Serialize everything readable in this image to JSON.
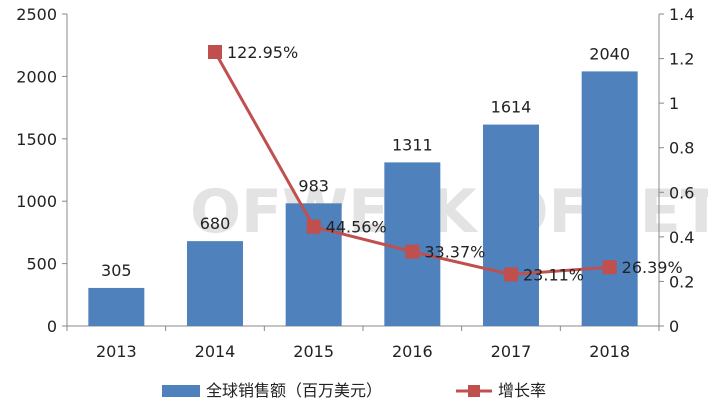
{
  "chart_data": {
    "type": "bar+line",
    "categories": [
      "2013",
      "2014",
      "2015",
      "2016",
      "2017",
      "2018"
    ],
    "left_axis": {
      "min": 0,
      "max": 2500,
      "ticks": [
        "0",
        "500",
        "1000",
        "1500",
        "2000",
        "2500"
      ]
    },
    "right_axis": {
      "min": 0,
      "max": 1.4,
      "ticks": [
        "0",
        "0.2",
        "0.4",
        "0.6",
        "0.8",
        "1",
        "1.2",
        "1.4"
      ]
    },
    "bar_series": {
      "name": "全球销售额（百万美元）",
      "color": "#4f81bd",
      "values": [
        305,
        680,
        983,
        1311,
        1614,
        2040
      ],
      "labels": [
        "305",
        "680",
        "983",
        "1311",
        "1614",
        "2040"
      ]
    },
    "line_series": {
      "name": "增长率",
      "color": "#c0504d",
      "values": [
        null,
        1.2295,
        0.4456,
        0.3337,
        0.2311,
        0.2639
      ],
      "labels": [
        "",
        "122.95%",
        "44.56%",
        "33.37%",
        "23.11%",
        "26.39%"
      ]
    },
    "grid": false,
    "legend_position": "bottom",
    "watermark": "OFWEEK OFNET"
  }
}
